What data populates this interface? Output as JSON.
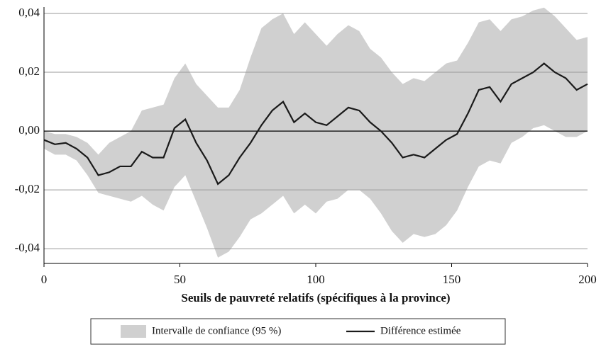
{
  "chart_data": {
    "type": "line",
    "xlabel": "Seuils de pauvreté relatifs (spécifiques à la province)",
    "x": [
      0,
      4,
      8,
      12,
      16,
      20,
      24,
      28,
      32,
      36,
      40,
      44,
      48,
      52,
      56,
      60,
      64,
      68,
      72,
      76,
      80,
      84,
      88,
      92,
      96,
      100,
      104,
      108,
      112,
      116,
      120,
      124,
      128,
      132,
      136,
      140,
      144,
      148,
      152,
      156,
      160,
      164,
      168,
      172,
      176,
      180,
      184,
      188,
      192,
      196,
      200
    ],
    "series": [
      {
        "name": "Intervalle de confiance (95 %)",
        "color": "#d0d0d0",
        "upper": [
          0.0,
          -0.001,
          -0.001,
          -0.002,
          -0.004,
          -0.008,
          -0.004,
          -0.002,
          0.0,
          0.007,
          0.008,
          0.009,
          0.018,
          0.023,
          0.016,
          0.012,
          0.008,
          0.008,
          0.014,
          0.025,
          0.035,
          0.038,
          0.04,
          0.033,
          0.037,
          0.033,
          0.029,
          0.033,
          0.036,
          0.034,
          0.028,
          0.025,
          0.02,
          0.016,
          0.018,
          0.017,
          0.02,
          0.023,
          0.024,
          0.03,
          0.037,
          0.038,
          0.034,
          0.038,
          0.039,
          0.041,
          0.042,
          0.039,
          0.035,
          0.031,
          0.032
        ],
        "lower": [
          -0.006,
          -0.008,
          -0.008,
          -0.01,
          -0.015,
          -0.021,
          -0.022,
          -0.023,
          -0.024,
          -0.022,
          -0.025,
          -0.027,
          -0.019,
          -0.015,
          -0.024,
          -0.033,
          -0.043,
          -0.041,
          -0.036,
          -0.03,
          -0.028,
          -0.025,
          -0.022,
          -0.028,
          -0.025,
          -0.028,
          -0.024,
          -0.023,
          -0.02,
          -0.02,
          -0.023,
          -0.028,
          -0.034,
          -0.038,
          -0.035,
          -0.036,
          -0.035,
          -0.032,
          -0.027,
          -0.019,
          -0.012,
          -0.01,
          -0.011,
          -0.004,
          -0.002,
          0.001,
          0.002,
          0.0,
          -0.002,
          -0.002,
          0.0
        ]
      },
      {
        "name": "Différence estimée",
        "color": "#1a1a1a",
        "values": [
          -0.003,
          -0.0045,
          -0.004,
          -0.006,
          -0.009,
          -0.015,
          -0.014,
          -0.012,
          -0.012,
          -0.007,
          -0.009,
          -0.009,
          0.001,
          0.004,
          -0.004,
          -0.01,
          -0.018,
          -0.015,
          -0.009,
          -0.004,
          0.002,
          0.007,
          0.01,
          0.003,
          0.006,
          0.003,
          0.002,
          0.005,
          0.008,
          0.007,
          0.003,
          0.0,
          -0.004,
          -0.009,
          -0.008,
          -0.009,
          -0.006,
          -0.003,
          -0.001,
          0.006,
          0.014,
          0.015,
          0.01,
          0.016,
          0.018,
          0.02,
          0.023,
          0.02,
          0.018,
          0.014,
          0.016
        ]
      }
    ],
    "xlim": [
      0,
      200
    ],
    "xticks": [
      0,
      50,
      100,
      150,
      200
    ],
    "ylim": [
      -0.045,
      0.04
    ],
    "yticks": [
      {
        "value": -0.04,
        "label": "-0,04"
      },
      {
        "value": -0.02,
        "label": "-0,02"
      },
      {
        "value": 0,
        "label": "0,00"
      },
      {
        "value": 0.02,
        "label": "0,02"
      },
      {
        "value": 0.04,
        "label": "0,04"
      }
    ],
    "grid": true,
    "legend": "bottom"
  }
}
